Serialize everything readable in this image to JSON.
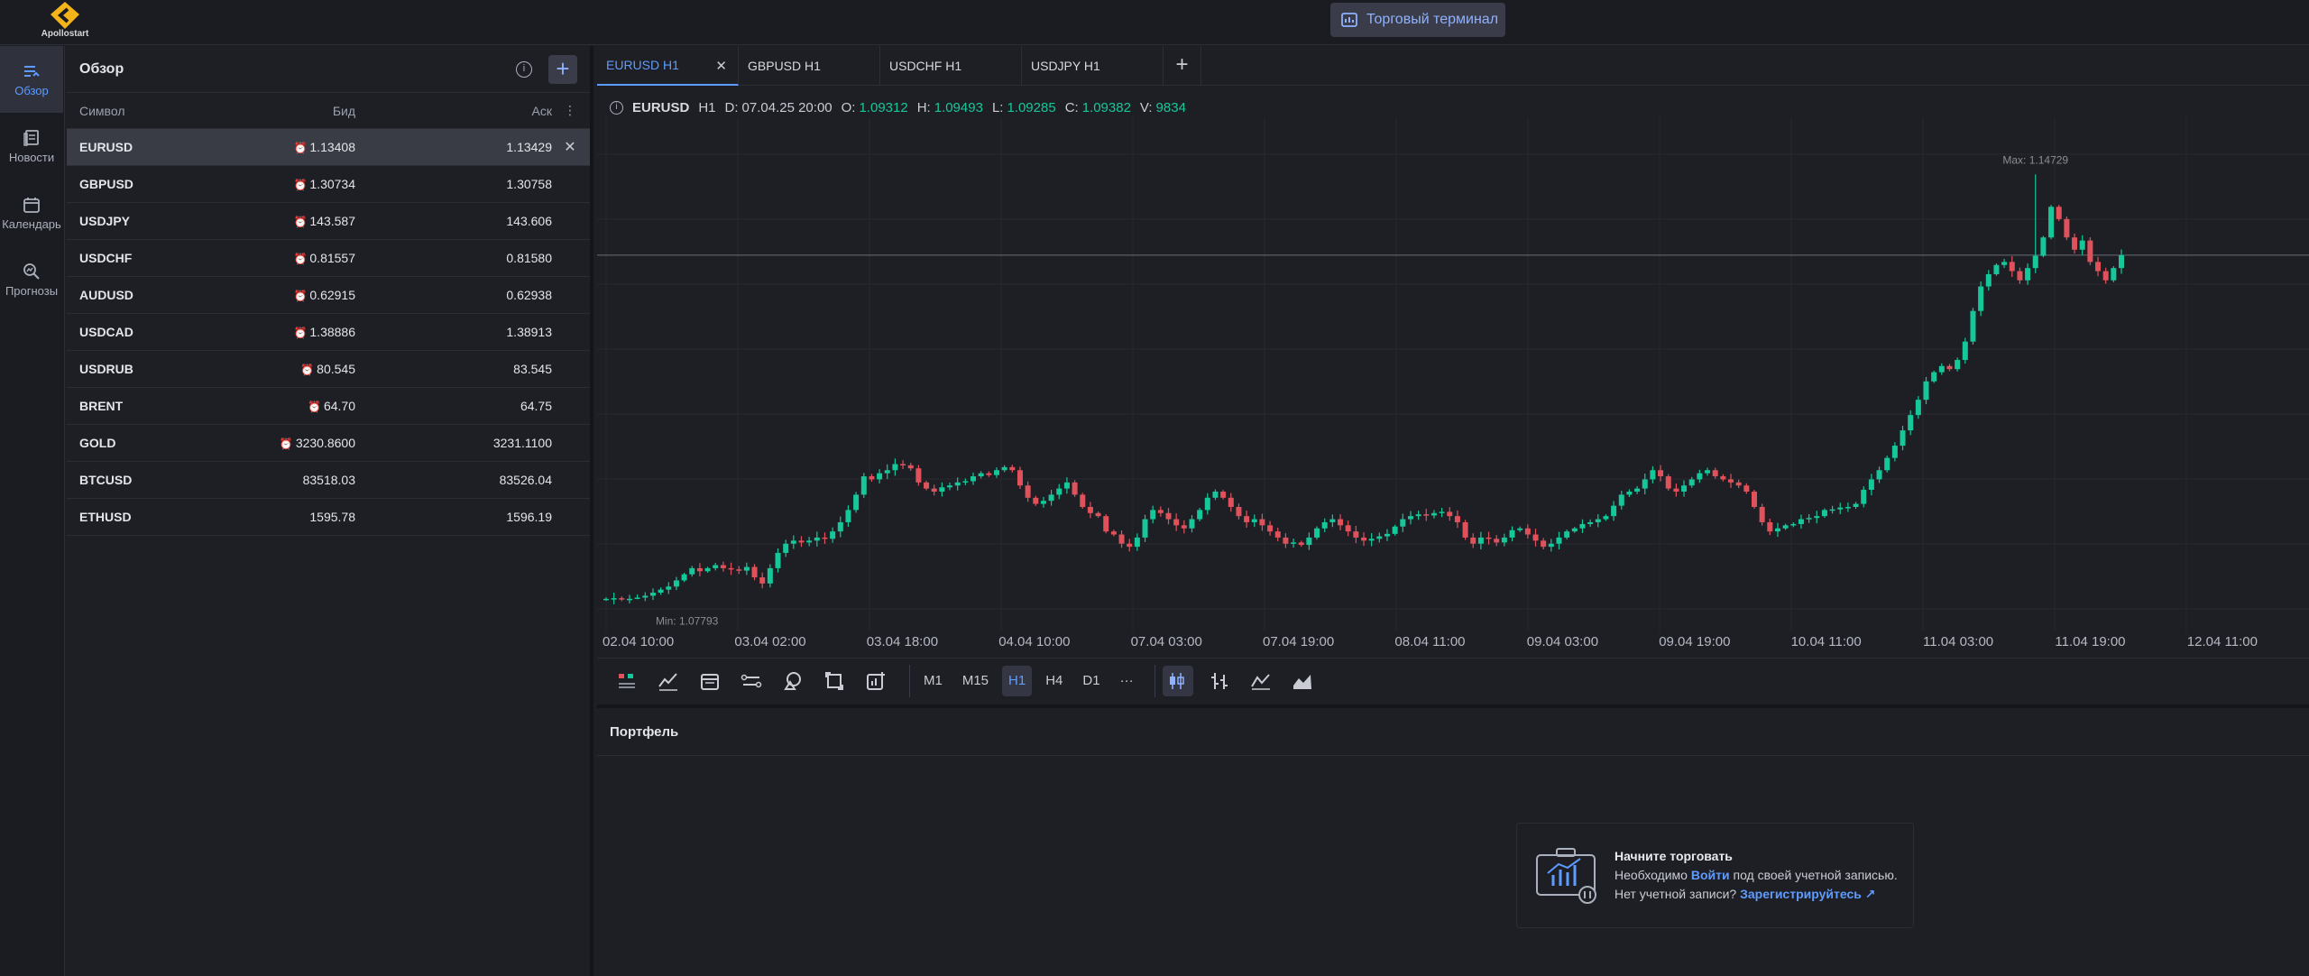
{
  "app": {
    "logo_text": "Apollostart",
    "terminal_button": "Торговый терминал"
  },
  "nav": [
    {
      "label": "Обзор",
      "icon": "overview-icon",
      "active": true
    },
    {
      "label": "Новости",
      "icon": "news-icon",
      "active": false
    },
    {
      "label": "Календарь",
      "icon": "calendar-icon",
      "active": false
    },
    {
      "label": "Прогнозы",
      "icon": "forecast-icon",
      "active": false
    }
  ],
  "watchlist": {
    "title": "Обзор",
    "col_symbol": "Символ",
    "col_bid": "Бид",
    "col_ask": "Аск",
    "rows": [
      {
        "symbol": "EURUSD",
        "bid": "1.13408",
        "ask": "1.13429",
        "clock": true
      },
      {
        "symbol": "GBPUSD",
        "bid": "1.30734",
        "ask": "1.30758",
        "clock": true
      },
      {
        "symbol": "USDJPY",
        "bid": "143.587",
        "ask": "143.606",
        "clock": true
      },
      {
        "symbol": "USDCHF",
        "bid": "0.81557",
        "ask": "0.81580",
        "clock": true
      },
      {
        "symbol": "AUDUSD",
        "bid": "0.62915",
        "ask": "0.62938",
        "clock": true
      },
      {
        "symbol": "USDCAD",
        "bid": "1.38886",
        "ask": "1.38913",
        "clock": true
      },
      {
        "symbol": "USDRUB",
        "bid": "80.545",
        "ask": "83.545",
        "clock": true
      },
      {
        "symbol": "BRENT",
        "bid": "64.70",
        "ask": "64.75",
        "clock": true
      },
      {
        "symbol": "GOLD",
        "bid": "3230.8600",
        "ask": "3231.1100",
        "clock": true
      },
      {
        "symbol": "BTCUSD",
        "bid": "83518.03",
        "ask": "83526.04",
        "clock": false
      },
      {
        "symbol": "ETHUSD",
        "bid": "1595.78",
        "ask": "1596.19",
        "clock": false
      }
    ]
  },
  "tabs": [
    {
      "label": "EURUSD H1",
      "active": true
    },
    {
      "label": "GBPUSD H1",
      "active": false
    },
    {
      "label": "USDCHF H1",
      "active": false
    },
    {
      "label": "USDJPY H1",
      "active": false
    }
  ],
  "ohlc": {
    "symbol": "EURUSD",
    "timeframe": "H1",
    "date_label": "D:",
    "date": "07.04.25 20:00",
    "o_label": "O:",
    "o": "1.09312",
    "h_label": "H:",
    "h": "1.09493",
    "l_label": "L:",
    "l": "1.09285",
    "c_label": "C:",
    "c": "1.09382",
    "v_label": "V:",
    "v": "9834"
  },
  "chart_data": {
    "type": "candlestick",
    "max_label": "Max: 1.14729",
    "min_label": "Min: 1.07793",
    "x_ticks": [
      "02.04 10:00",
      "03.04 02:00",
      "03.04 18:00",
      "04.04 10:00",
      "07.04 03:00",
      "07.04 19:00",
      "08.04 11:00",
      "09.04 03:00",
      "09.04 19:00",
      "10.04 11:00",
      "11.04 03:00",
      "11.04 19:00",
      "12.04 11:00"
    ],
    "ylim": [
      1.074,
      1.155
    ],
    "current_price": 1.1341,
    "closes": [
      1.078,
      1.0781,
      1.0779,
      1.078,
      1.0782,
      1.0785,
      1.079,
      1.0795,
      1.08,
      1.081,
      1.082,
      1.083,
      1.0825,
      1.083,
      1.0835,
      1.083,
      1.0828,
      1.0826,
      1.0832,
      1.0815,
      1.0805,
      1.083,
      1.0855,
      1.087,
      1.0875,
      1.0872,
      1.0875,
      1.088,
      1.0878,
      1.089,
      1.0905,
      1.0925,
      1.095,
      1.098,
      1.0975,
      1.0985,
      1.099,
      1.1,
      1.0998,
      1.0993,
      1.097,
      1.096,
      1.0955,
      1.0962,
      1.0965,
      1.097,
      1.0972,
      1.098,
      1.0985,
      1.0982,
      1.099,
      1.0995,
      1.099,
      1.0965,
      1.0945,
      1.0935,
      1.094,
      1.095,
      1.096,
      1.097,
      1.095,
      1.093,
      1.092,
      1.0915,
      1.089,
      1.0885,
      1.087,
      1.0865,
      1.088,
      1.091,
      1.0925,
      1.092,
      1.091,
      1.09,
      1.0895,
      1.091,
      1.0925,
      1.0945,
      1.0955,
      1.0945,
      1.093,
      1.0915,
      1.0905,
      1.091,
      1.09,
      1.089,
      1.088,
      1.087,
      1.0872,
      1.0868,
      1.088,
      1.0895,
      1.0905,
      1.091,
      1.09,
      1.089,
      1.088,
      1.0875,
      1.0878,
      1.0882,
      1.0886,
      1.0898,
      1.091,
      1.0915,
      1.0918,
      1.0916,
      1.092,
      1.0922,
      1.0915,
      1.0905,
      1.088,
      1.087,
      1.088,
      1.0878,
      1.0872,
      1.088,
      1.0892,
      1.0895,
      1.0885,
      1.0875,
      1.0865,
      1.087,
      1.088,
      1.089,
      1.0895,
      1.0902,
      1.0905,
      1.091,
      1.0915,
      1.0932,
      1.095,
      1.0955,
      1.096,
      1.0975,
      1.099,
      1.098,
      1.096,
      1.0955,
      1.0965,
      1.0975,
      1.0985,
      1.099,
      1.098,
      1.0975,
      1.097,
      1.0965,
      1.0955,
      1.093,
      1.0905,
      1.089,
      1.0895,
      1.09,
      1.0902,
      1.091,
      1.0912,
      1.0915,
      1.0925,
      1.0926,
      1.0929,
      1.093,
      1.0935,
      1.0958,
      1.0975,
      1.099,
      1.101,
      1.103,
      1.1055,
      1.108,
      1.1105,
      1.1135,
      1.115,
      1.116,
      1.1155,
      1.117,
      1.12,
      1.125,
      1.129,
      1.131,
      1.1325,
      1.133,
      1.1315,
      1.13,
      1.132,
      1.134,
      1.137,
      1.142,
      1.14,
      1.137,
      1.135,
      1.1365,
      1.133,
      1.1315,
      1.13,
      1.132,
      1.1341
    ],
    "markers": {
      "max": {
        "value": 1.14729,
        "index": 183
      },
      "min": {
        "value": 1.07793,
        "index": 4
      }
    }
  },
  "toolbar": {
    "timeframes": [
      "M1",
      "M15",
      "H1",
      "H4",
      "D1",
      "···"
    ],
    "active_timeframe": "H1"
  },
  "portfolio": {
    "title": "Портфель",
    "card_title": "Начните торговать",
    "line1_prefix": "Необходимо ",
    "login_link": "Войти",
    "line1_suffix": " под своей учетной записью.",
    "line2_prefix": "Нет учетной записи? ",
    "register_link": "Зарегистрируйтесь"
  }
}
